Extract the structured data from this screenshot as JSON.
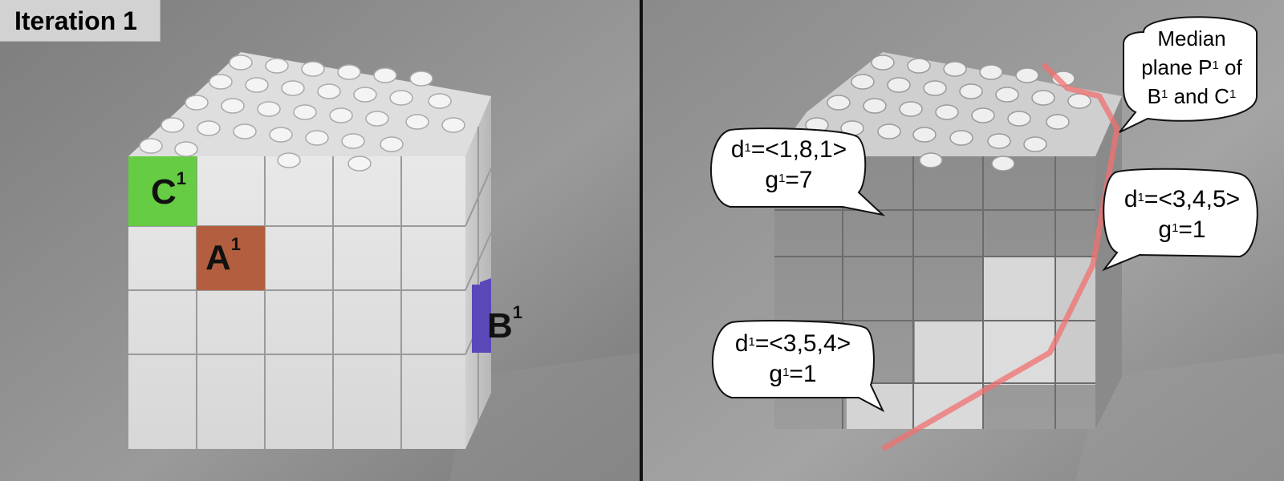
{
  "title": "Iteration 1",
  "left_labels": {
    "c": {
      "base": "C",
      "sup": "1",
      "color": "#66cc44"
    },
    "a": {
      "base": "A",
      "sup": "1",
      "color": "#b35f3f"
    },
    "b": {
      "base": "B",
      "sup": "1",
      "color": "#5a48b8"
    }
  },
  "bubbles": {
    "top_left": {
      "line1_pre": "d",
      "line1_sup": "1",
      "line1_post": "=<1,8,1>",
      "line2_pre": "g",
      "line2_sup": "1",
      "line2_post": "=7"
    },
    "middle_right": {
      "line1_pre": "d",
      "line1_sup": "1",
      "line1_post": "=<3,4,5>",
      "line2_pre": "g",
      "line2_sup": "1",
      "line2_post": "=1"
    },
    "bottom_left": {
      "line1_pre": "d",
      "line1_sup": "1",
      "line1_post": "=<3,5,4>",
      "line2_pre": "g",
      "line2_sup": "1",
      "line2_post": "=1"
    },
    "median": {
      "line1": "Median",
      "line2_pre": "plane P",
      "line2_sup": "1",
      "line2_post": " of",
      "line3_pre": "B",
      "line3_sup": "1",
      "line3_mid": " and C",
      "line3_sup2": "1"
    }
  },
  "colors": {
    "median_path": "#f07070"
  }
}
